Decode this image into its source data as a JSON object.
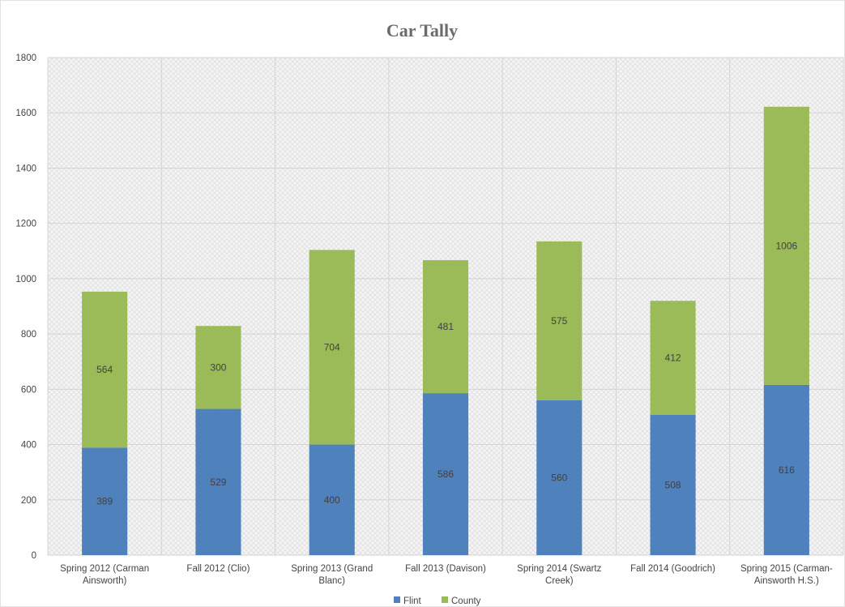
{
  "chart_data": {
    "type": "bar",
    "stacked": true,
    "title": "Car Tally",
    "xlabel": "",
    "ylabel": "",
    "ylim": [
      0,
      1800
    ],
    "yticks": [
      0,
      200,
      400,
      600,
      800,
      1000,
      1200,
      1400,
      1600,
      1800
    ],
    "grid": true,
    "legend_position": "bottom",
    "categories": [
      [
        "Spring 2012 (Carman",
        "Ainsworth)"
      ],
      [
        "Fall 2012 (Clio)"
      ],
      [
        "Spring 2013 (Grand",
        "Blanc)"
      ],
      [
        "Fall 2013 (Davison)"
      ],
      [
        "Spring 2014 (Swartz",
        "Creek)"
      ],
      [
        "Fall 2014 (Goodrich)"
      ],
      [
        "Spring 2015 (Carman-",
        "Ainsworth H.S.)"
      ]
    ],
    "series": [
      {
        "name": "Flint",
        "color": "#4f81bd",
        "values": [
          389,
          529,
          400,
          586,
          560,
          508,
          616
        ]
      },
      {
        "name": "County",
        "color": "#9bbb59",
        "values": [
          564,
          300,
          704,
          481,
          575,
          412,
          1006
        ]
      }
    ]
  }
}
